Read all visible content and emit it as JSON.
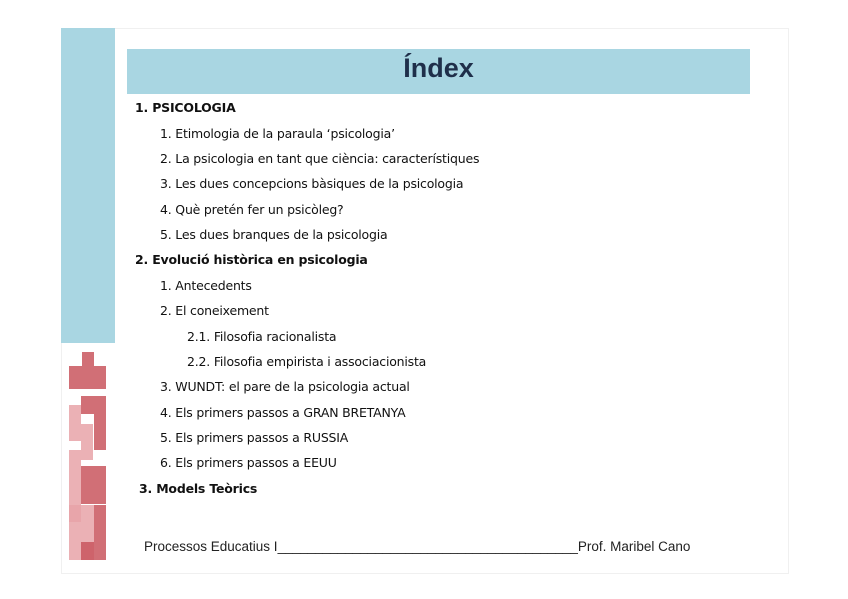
{
  "title": "Índex",
  "items": [
    {
      "level": 1,
      "text": "1. PSICOLOGIA"
    },
    {
      "level": 2,
      "text": "1. Etimologia de la paraula ‘psicologia’"
    },
    {
      "level": 2,
      "text": "2. La psicologia en tant que ciència: característiques"
    },
    {
      "level": 2,
      "text": "3. Les dues concepcions bàsiques de la psicologia"
    },
    {
      "level": 2,
      "text": "4. Què pretén fer un psicòleg?"
    },
    {
      "level": 2,
      "text": "5. Les dues branques de la psicologia"
    },
    {
      "level": 1,
      "text": "2. Evolució històrica en psicologia"
    },
    {
      "level": 2,
      "text": "1. Antecedents"
    },
    {
      "level": 2,
      "text": "2. El coneixement"
    },
    {
      "level": 3,
      "text": "2.1. Filosofia racionalista"
    },
    {
      "level": 3,
      "text": "2.2. Filosofia empirista i associacionista"
    },
    {
      "level": 2,
      "text": "3. WUNDT: el pare de la psicologia actual"
    },
    {
      "level": 2,
      "text": "4. Els primers passos a GRAN BRETANYA"
    },
    {
      "level": 2,
      "text": "5. Els primers passos a RUSSIA"
    },
    {
      "level": 2,
      "text": "6. Els primers passos a EEUU"
    },
    {
      "level": 1,
      "text": "3. Models Teòrics"
    }
  ],
  "footer": "Processos Educatius I________________________________________Prof. Maribel Cano",
  "colors": {
    "header": "#a9d6e2",
    "title": "#1f2f4a",
    "decoration": "#c9565e"
  },
  "decoration_icon": "tetris-blocks"
}
